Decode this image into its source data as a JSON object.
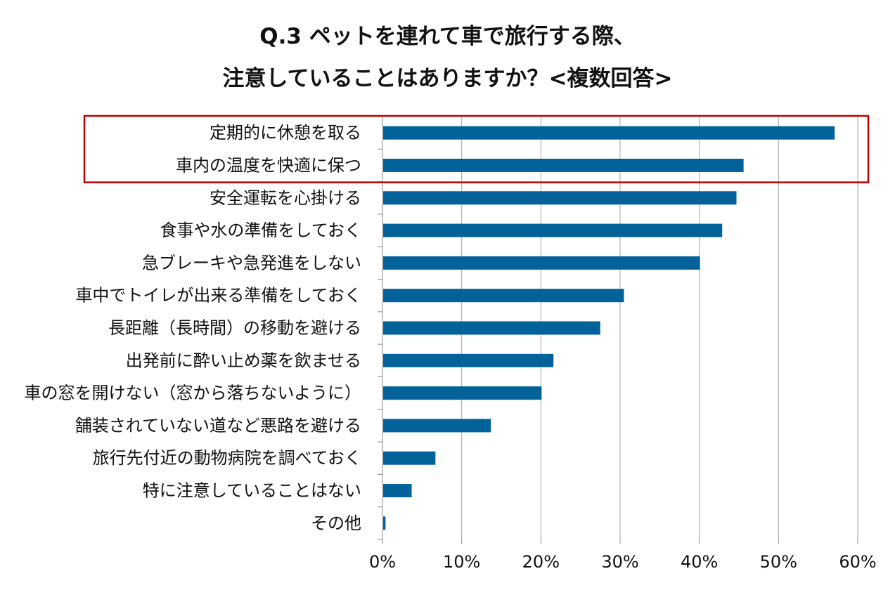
{
  "title": {
    "line1": "Q.3 ペットを連れて車で旅行する際、",
    "line2": "注意していることはありますか？<複数回答>"
  },
  "chart_data": {
    "type": "bar",
    "orientation": "horizontal",
    "categories": [
      "定期的に休憩を取る",
      "車内の温度を快適に保つ",
      "安全運転を心掛ける",
      "食事や水の準備をしておく",
      "急ブレーキや急発進をしない",
      "車中でトイレが出来る準備をしておく",
      "長距離（長時間）の移動を避ける",
      "出発前に酔い止め薬を飲ませる",
      "車の窓を開けない（窓から落ちないように）",
      "舗装されていない道など悪路を避ける",
      "旅行先付近の動物病院を調べておく",
      "特に注意していることはない",
      "その他"
    ],
    "values": [
      57.0,
      45.5,
      44.6,
      42.8,
      40.0,
      30.4,
      27.4,
      21.5,
      20.0,
      13.6,
      6.6,
      3.6,
      0.3
    ],
    "unit": "%",
    "xlim": [
      0,
      60
    ],
    "xticks": [
      "0%",
      "10%",
      "20%",
      "30%",
      "40%",
      "50%",
      "60%"
    ],
    "grid": "vertical",
    "bar_color": "#04629A",
    "gridline_color": "#A6A6A6",
    "highlight": {
      "categories": [
        0,
        1
      ],
      "color": "#C00000"
    }
  }
}
